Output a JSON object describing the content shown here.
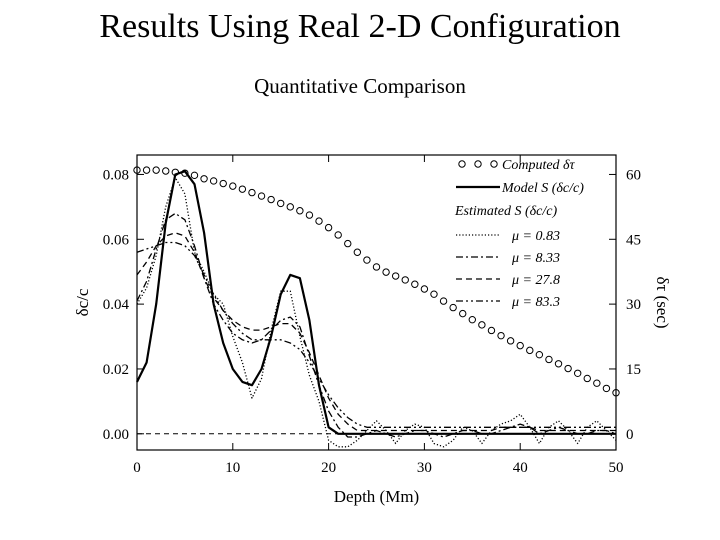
{
  "slide": {
    "title": "Results Using Real 2-D Configuration",
    "subtitle": "Quantitative Comparison"
  },
  "chart_data": {
    "type": "line",
    "xlabel": "Depth (Mm)",
    "ylabel": "δc/c",
    "y2label": "δτ (sec)",
    "xlim": [
      0,
      50
    ],
    "ylim": [
      -0.005,
      0.086
    ],
    "y2lim": [
      -3.75,
      64.5
    ],
    "x_ticks": [
      0,
      10,
      20,
      30,
      40,
      50
    ],
    "y_ticks": [
      0.0,
      0.02,
      0.04,
      0.06,
      0.08
    ],
    "y_tick_labels": [
      "0.00",
      "0.02",
      "0.04",
      "0.06",
      "0.08"
    ],
    "y2_ticks": [
      0,
      15,
      30,
      45,
      60
    ],
    "grid": false,
    "legend_position": "top-right",
    "legend_header": "Estimated S (δc/c)",
    "series": [
      {
        "name": "Computed δτ",
        "style": "circles",
        "axis": "right",
        "x": [
          0,
          1,
          2,
          3,
          4,
          5,
          6,
          7,
          8,
          9,
          10,
          11,
          12,
          13,
          14,
          15,
          16,
          17,
          18,
          19,
          20,
          21,
          22,
          23,
          24,
          25,
          26,
          27,
          28,
          29,
          30,
          31,
          32,
          33,
          34,
          35,
          36,
          37,
          38,
          39,
          40,
          41,
          42,
          43,
          44,
          45,
          46,
          47,
          48,
          49,
          50
        ],
        "values": [
          61,
          61,
          61,
          60.8,
          60.5,
          60.3,
          59.8,
          59,
          58.5,
          57.9,
          57.3,
          56.6,
          55.8,
          55,
          54.2,
          53.3,
          52.5,
          51.6,
          50.6,
          49.2,
          47.7,
          46,
          44,
          42,
          40.2,
          38.6,
          37.4,
          36.5,
          35.6,
          34.6,
          33.5,
          32.3,
          30.7,
          29.2,
          27.8,
          26.4,
          25.2,
          23.9,
          22.7,
          21.5,
          20.4,
          19.3,
          18.3,
          17.2,
          16.2,
          15.1,
          14,
          12.8,
          11.7,
          10.5,
          9.5
        ]
      },
      {
        "name": "Model S (δc/c)",
        "style": "solid",
        "axis": "left",
        "x": [
          0,
          1,
          2,
          3,
          4,
          5,
          6,
          7,
          8,
          9,
          10,
          11,
          12,
          13,
          14,
          15,
          16,
          17,
          18,
          19,
          20,
          21,
          22,
          23,
          24,
          25,
          26,
          27,
          28,
          29,
          30,
          31,
          32,
          33,
          34,
          35,
          36,
          37,
          38,
          39,
          40,
          41,
          42,
          43,
          44,
          45,
          46,
          47,
          48,
          49,
          50
        ],
        "values": [
          0.016,
          0.022,
          0.04,
          0.065,
          0.08,
          0.081,
          0.077,
          0.062,
          0.04,
          0.028,
          0.02,
          0.016,
          0.015,
          0.02,
          0.03,
          0.043,
          0.049,
          0.048,
          0.035,
          0.015,
          0.002,
          0,
          0,
          0,
          0,
          0,
          0,
          0,
          0,
          0,
          0,
          0,
          0,
          0,
          0,
          0,
          0,
          0,
          0,
          0,
          0,
          0,
          0,
          0,
          0,
          0,
          0,
          0,
          0,
          0,
          0
        ]
      },
      {
        "name": "μ = 0.83",
        "style": "dotted",
        "axis": "left",
        "x": [
          0,
          1,
          2,
          3,
          4,
          5,
          6,
          7,
          8,
          9,
          10,
          11,
          12,
          13,
          14,
          15,
          16,
          17,
          18,
          19,
          20,
          21,
          22,
          23,
          24,
          25,
          26,
          27,
          28,
          29,
          30,
          31,
          32,
          33,
          34,
          35,
          36,
          37,
          38,
          39,
          40,
          41,
          42,
          43,
          44,
          45,
          46,
          47,
          48,
          49,
          50
        ],
        "values": [
          0.04,
          0.045,
          0.055,
          0.07,
          0.079,
          0.074,
          0.056,
          0.05,
          0.043,
          0.04,
          0.03,
          0.022,
          0.011,
          0.017,
          0.032,
          0.044,
          0.044,
          0.03,
          0.018,
          0.01,
          -0.002,
          -0.004,
          -0.004,
          -0.002,
          0.001,
          0.004,
          0.001,
          -0.003,
          0.001,
          0.003,
          0.002,
          -0.003,
          -0.004,
          -0.002,
          0.002,
          0.001,
          -0.003,
          0.001,
          0.003,
          0.004,
          0.006,
          0.002,
          -0.003,
          0.002,
          0.004,
          0.001,
          -0.003,
          0.002,
          0.004,
          0.001,
          -0.002
        ]
      },
      {
        "name": "μ = 8.33",
        "style": "dashdot",
        "axis": "left",
        "x": [
          0,
          1,
          2,
          3,
          4,
          5,
          6,
          7,
          8,
          9,
          10,
          11,
          12,
          13,
          14,
          15,
          16,
          17,
          18,
          19,
          20,
          21,
          22,
          23,
          24,
          25,
          26,
          27,
          28,
          29,
          30,
          31,
          32,
          33,
          34,
          35,
          36,
          37,
          38,
          39,
          40,
          41,
          42,
          43,
          44,
          45,
          46,
          47,
          48,
          49,
          50
        ],
        "values": [
          0.041,
          0.047,
          0.057,
          0.066,
          0.068,
          0.066,
          0.058,
          0.048,
          0.04,
          0.035,
          0.031,
          0.029,
          0.028,
          0.029,
          0.032,
          0.035,
          0.036,
          0.033,
          0.024,
          0.015,
          0.007,
          0.002,
          -0.001,
          -0.001,
          0,
          0.001,
          0,
          -0.001,
          0,
          0.001,
          0.001,
          0,
          -0.001,
          0,
          0.001,
          0.001,
          0,
          0,
          0.001,
          0.002,
          0.003,
          0.002,
          0,
          0.001,
          0.002,
          0.001,
          0,
          0,
          0.001,
          0.001,
          0
        ]
      },
      {
        "name": "μ = 27.8",
        "style": "dashed",
        "axis": "left",
        "x": [
          0,
          1,
          2,
          3,
          4,
          5,
          6,
          7,
          8,
          9,
          10,
          11,
          12,
          13,
          14,
          15,
          16,
          17,
          18,
          19,
          20,
          21,
          22,
          23,
          24,
          25,
          26,
          27,
          28,
          29,
          30,
          31,
          32,
          33,
          34,
          35,
          36,
          37,
          38,
          39,
          40,
          41,
          42,
          43,
          44,
          45,
          46,
          47,
          48,
          49,
          50
        ],
        "values": [
          0.049,
          0.053,
          0.058,
          0.061,
          0.062,
          0.061,
          0.056,
          0.048,
          0.042,
          0.038,
          0.035,
          0.033,
          0.032,
          0.032,
          0.033,
          0.034,
          0.034,
          0.031,
          0.025,
          0.018,
          0.011,
          0.006,
          0.003,
          0.001,
          0.001,
          0.001,
          0.001,
          0.001,
          0.001,
          0.001,
          0.001,
          0.001,
          0.001,
          0.001,
          0.001,
          0.001,
          0.001,
          0.001,
          0.002,
          0.002,
          0.002,
          0.002,
          0.001,
          0.001,
          0.001,
          0.001,
          0.001,
          0.001,
          0.001,
          0.001,
          0.001
        ]
      },
      {
        "name": "μ = 83.3",
        "style": "dashdotdot",
        "axis": "left",
        "x": [
          0,
          1,
          2,
          3,
          4,
          5,
          6,
          7,
          8,
          9,
          10,
          11,
          12,
          13,
          14,
          15,
          16,
          17,
          18,
          19,
          20,
          21,
          22,
          23,
          24,
          25,
          26,
          27,
          28,
          29,
          30,
          31,
          32,
          33,
          34,
          35,
          36,
          37,
          38,
          39,
          40,
          41,
          42,
          43,
          44,
          45,
          46,
          47,
          48,
          49,
          50
        ],
        "values": [
          0.056,
          0.057,
          0.058,
          0.059,
          0.059,
          0.058,
          0.055,
          0.049,
          0.043,
          0.038,
          0.034,
          0.031,
          0.029,
          0.029,
          0.029,
          0.029,
          0.028,
          0.026,
          0.022,
          0.017,
          0.012,
          0.008,
          0.005,
          0.003,
          0.002,
          0.002,
          0.002,
          0.002,
          0.002,
          0.002,
          0.002,
          0.002,
          0.002,
          0.002,
          0.002,
          0.002,
          0.002,
          0.002,
          0.002,
          0.002,
          0.002,
          0.002,
          0.002,
          0.002,
          0.002,
          0.002,
          0.002,
          0.002,
          0.002,
          0.002,
          0.002
        ]
      }
    ]
  }
}
